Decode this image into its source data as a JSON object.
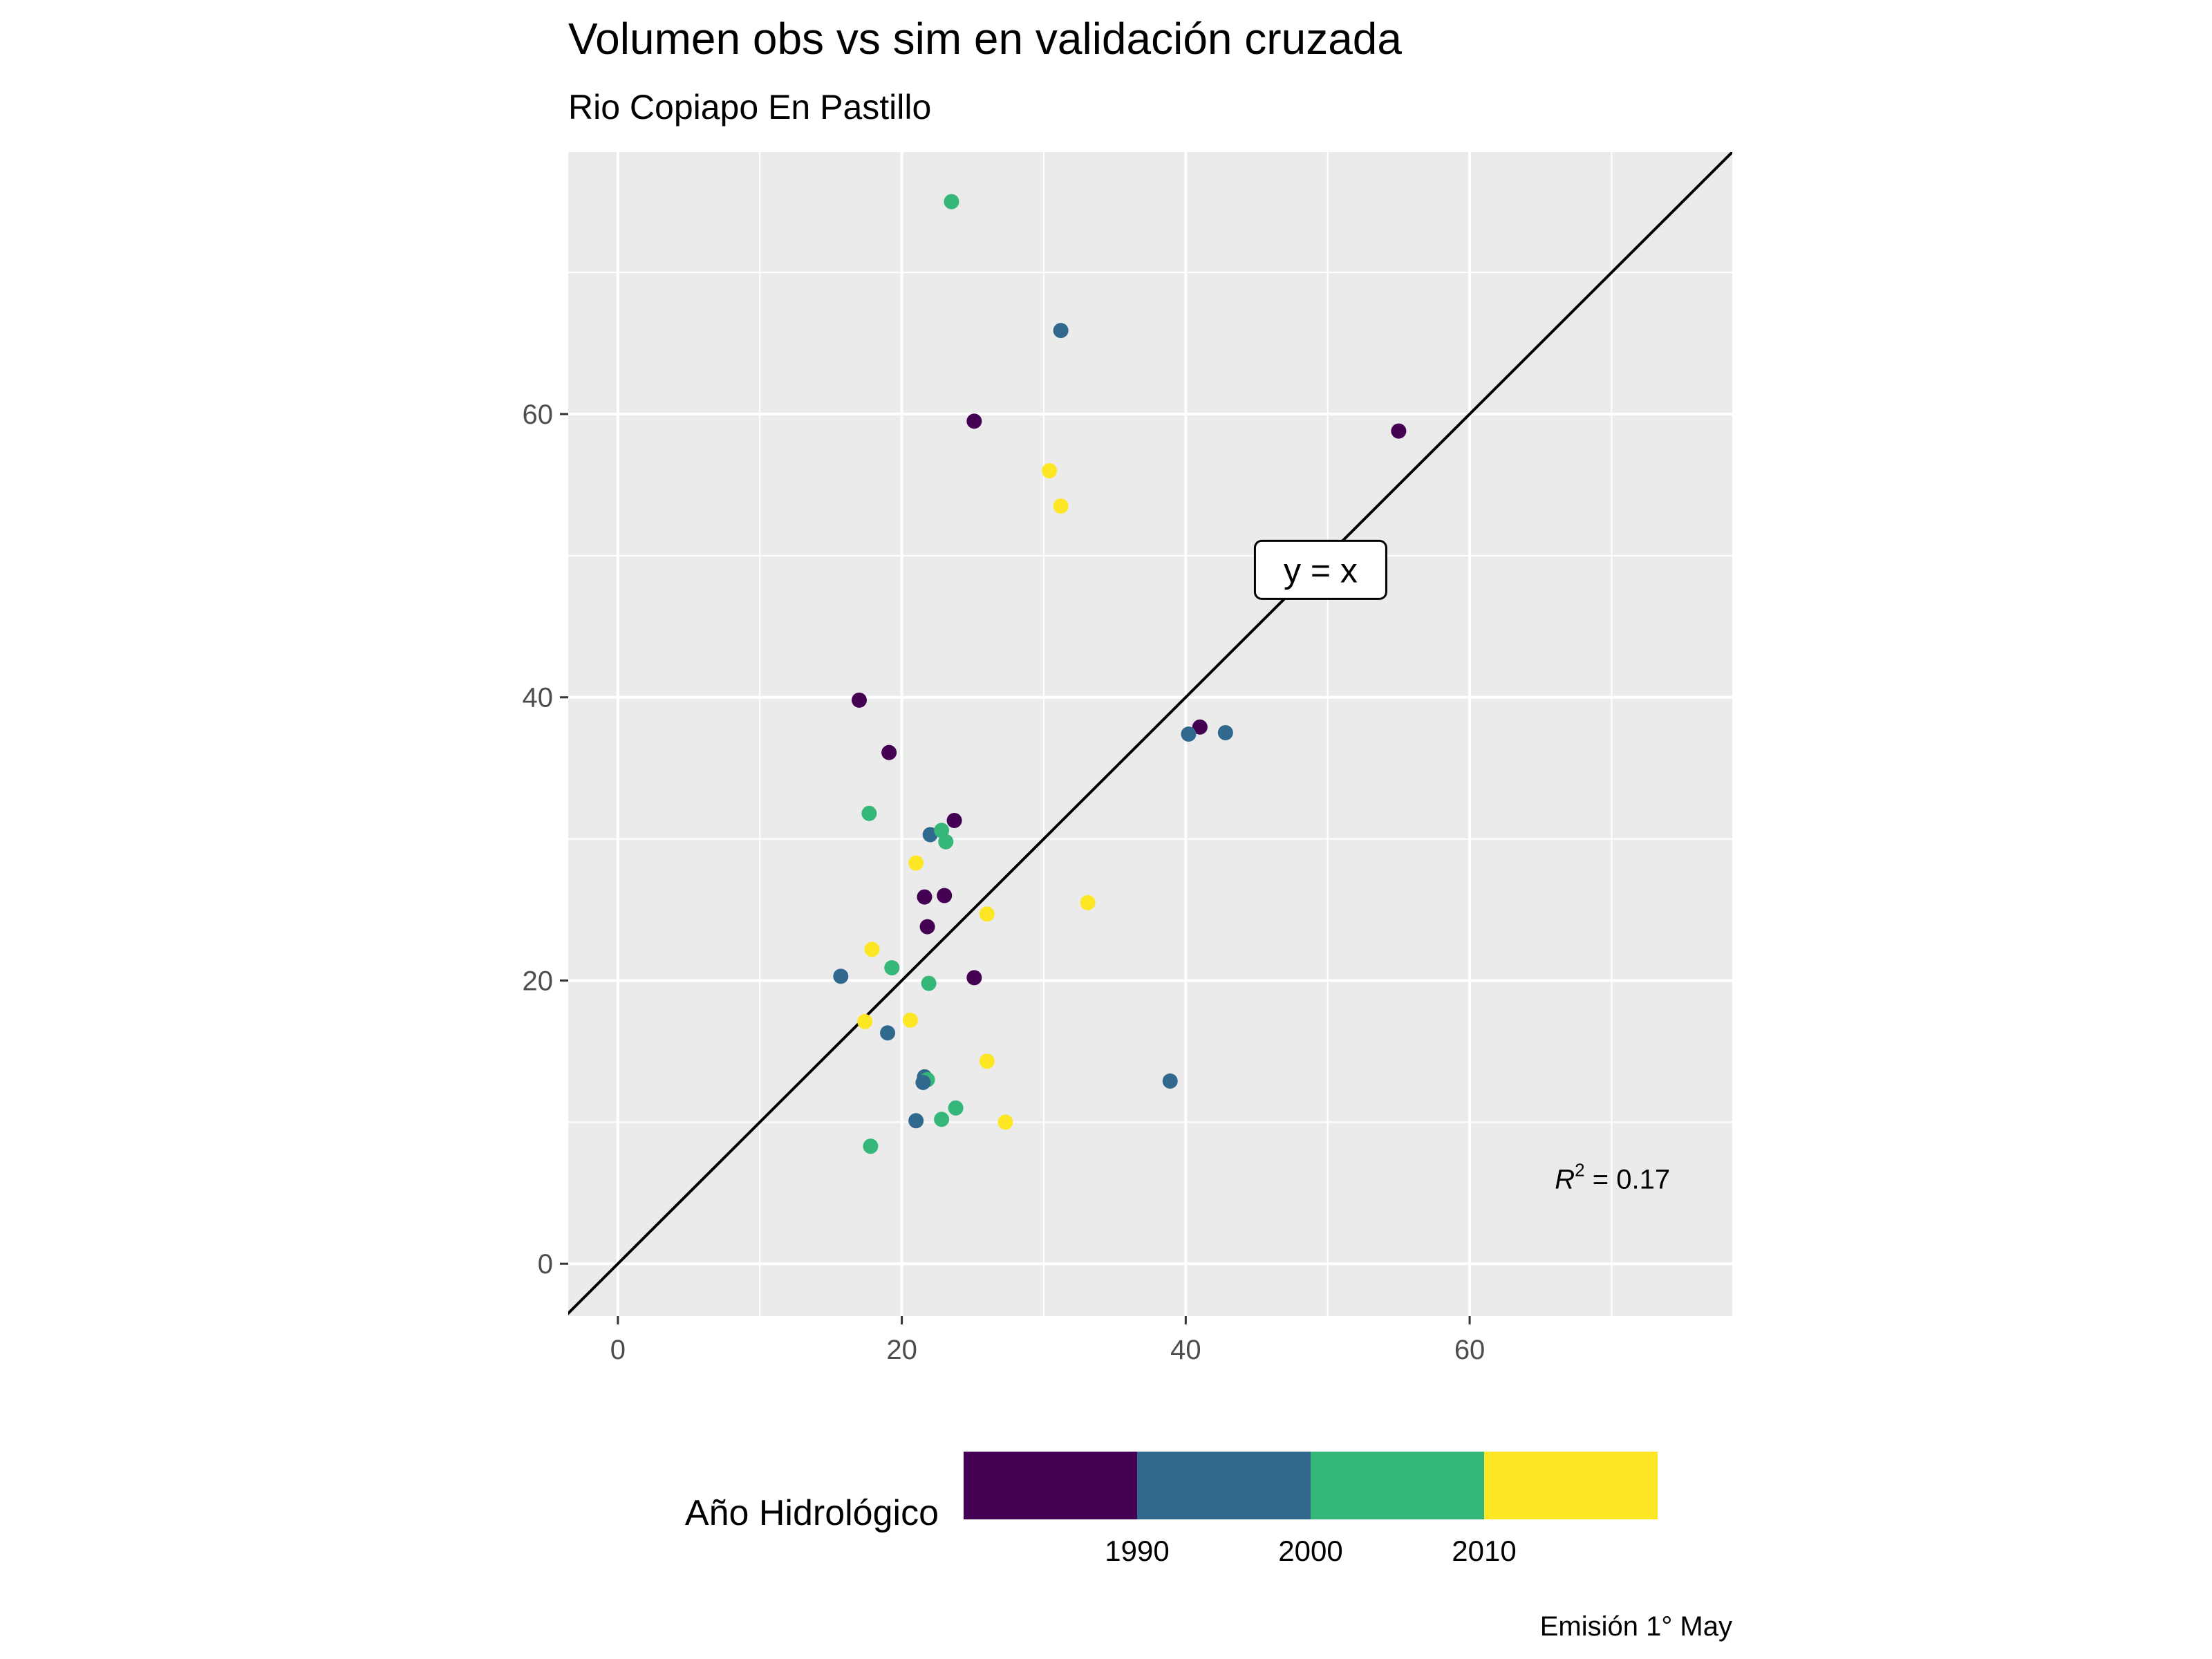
{
  "chart_data": {
    "type": "scatter",
    "title": "Volumen obs vs sim en validación cruzada",
    "subtitle": "Rio Copiapo En Pastillo",
    "xlabel": "",
    "ylabel": "",
    "xlim": [
      -3.5,
      78.5
    ],
    "ylim": [
      -3.7,
      78.5
    ],
    "x_ticks": [
      0,
      20,
      40,
      60
    ],
    "y_ticks": [
      0,
      20,
      40,
      60
    ],
    "grid": true,
    "reference_line": {
      "label": "y = x",
      "label_pos": [
        49.5,
        49
      ]
    },
    "annotation_r2": {
      "symbol": "R",
      "superscript": "2",
      "text": " = 0.17",
      "pos": [
        66,
        5.3
      ]
    },
    "legend": {
      "title": "Año Hidrológico",
      "position": "bottom",
      "colors": [
        "#440154",
        "#31688E",
        "#35B779",
        "#FDE725"
      ],
      "labels": [
        "1990",
        "2000",
        "2010"
      ]
    },
    "caption": "Emisión 1° May",
    "points": [
      {
        "x": 23.5,
        "y": 75.0,
        "c": "#35B779"
      },
      {
        "x": 31.2,
        "y": 65.9,
        "c": "#31688E"
      },
      {
        "x": 25.1,
        "y": 59.5,
        "c": "#440154"
      },
      {
        "x": 55.0,
        "y": 58.8,
        "c": "#440154"
      },
      {
        "x": 30.4,
        "y": 56.0,
        "c": "#FDE725"
      },
      {
        "x": 31.2,
        "y": 53.5,
        "c": "#FDE725"
      },
      {
        "x": 17.0,
        "y": 39.8,
        "c": "#440154"
      },
      {
        "x": 19.1,
        "y": 36.1,
        "c": "#440154"
      },
      {
        "x": 41.0,
        "y": 37.9,
        "c": "#440154"
      },
      {
        "x": 40.2,
        "y": 37.4,
        "c": "#31688E"
      },
      {
        "x": 42.8,
        "y": 37.5,
        "c": "#31688E"
      },
      {
        "x": 17.7,
        "y": 31.8,
        "c": "#35B779"
      },
      {
        "x": 23.7,
        "y": 31.3,
        "c": "#440154"
      },
      {
        "x": 22.0,
        "y": 30.3,
        "c": "#31688E"
      },
      {
        "x": 22.8,
        "y": 30.6,
        "c": "#35B779"
      },
      {
        "x": 23.1,
        "y": 29.8,
        "c": "#35B779"
      },
      {
        "x": 21.0,
        "y": 28.3,
        "c": "#FDE725"
      },
      {
        "x": 21.6,
        "y": 25.9,
        "c": "#440154"
      },
      {
        "x": 23.0,
        "y": 26.0,
        "c": "#440154"
      },
      {
        "x": 33.1,
        "y": 25.5,
        "c": "#FDE725"
      },
      {
        "x": 26.0,
        "y": 24.7,
        "c": "#FDE725"
      },
      {
        "x": 21.8,
        "y": 23.8,
        "c": "#440154"
      },
      {
        "x": 17.9,
        "y": 22.2,
        "c": "#FDE725"
      },
      {
        "x": 15.7,
        "y": 20.3,
        "c": "#31688E"
      },
      {
        "x": 19.3,
        "y": 20.9,
        "c": "#35B779"
      },
      {
        "x": 21.9,
        "y": 19.8,
        "c": "#35B779"
      },
      {
        "x": 25.1,
        "y": 20.2,
        "c": "#440154"
      },
      {
        "x": 17.4,
        "y": 17.1,
        "c": "#FDE725"
      },
      {
        "x": 20.6,
        "y": 17.2,
        "c": "#FDE725"
      },
      {
        "x": 19.0,
        "y": 16.3,
        "c": "#31688E"
      },
      {
        "x": 26.0,
        "y": 14.3,
        "c": "#FDE725"
      },
      {
        "x": 21.6,
        "y": 13.2,
        "c": "#31688E"
      },
      {
        "x": 21.8,
        "y": 13.0,
        "c": "#35B779"
      },
      {
        "x": 21.5,
        "y": 12.8,
        "c": "#31688E"
      },
      {
        "x": 38.9,
        "y": 12.9,
        "c": "#31688E"
      },
      {
        "x": 23.8,
        "y": 11.0,
        "c": "#35B779"
      },
      {
        "x": 21.0,
        "y": 10.1,
        "c": "#31688E"
      },
      {
        "x": 22.8,
        "y": 10.2,
        "c": "#35B779"
      },
      {
        "x": 27.3,
        "y": 10.0,
        "c": "#FDE725"
      },
      {
        "x": 17.8,
        "y": 8.3,
        "c": "#35B779"
      }
    ]
  }
}
